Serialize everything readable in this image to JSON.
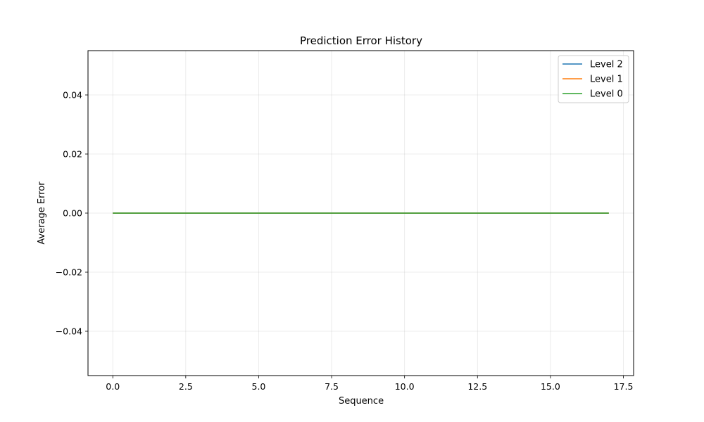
{
  "chart_data": {
    "type": "line",
    "title": "Prediction Error History",
    "xlabel": "Sequence",
    "ylabel": "Average Error",
    "xlim": [
      -0.85,
      17.85
    ],
    "ylim": [
      -0.055,
      0.055
    ],
    "x_ticks": [
      0.0,
      2.5,
      5.0,
      7.5,
      10.0,
      12.5,
      15.0,
      17.5
    ],
    "x_tick_labels": [
      "0.0",
      "2.5",
      "5.0",
      "7.5",
      "10.0",
      "12.5",
      "15.0",
      "17.5"
    ],
    "y_ticks": [
      -0.04,
      -0.02,
      0.0,
      0.02,
      0.04
    ],
    "y_tick_labels": [
      "−0.04",
      "−0.02",
      "0.00",
      "0.02",
      "0.04"
    ],
    "grid": true,
    "legend_position": "top-right",
    "x": [
      0,
      1,
      2,
      3,
      4,
      5,
      6,
      7,
      8,
      9,
      10,
      11,
      12,
      13,
      14,
      15,
      16,
      17
    ],
    "series": [
      {
        "name": "Level 2",
        "color": "#1f77b4",
        "values": [
          0,
          0,
          0,
          0,
          0,
          0,
          0,
          0,
          0,
          0,
          0,
          0,
          0,
          0,
          0,
          0,
          0,
          0
        ]
      },
      {
        "name": "Level 1",
        "color": "#ff7f0e",
        "values": [
          0,
          0,
          0,
          0,
          0,
          0,
          0,
          0,
          0,
          0,
          0,
          0,
          0,
          0,
          0,
          0,
          0,
          0
        ]
      },
      {
        "name": "Level 0",
        "color": "#2ca02c",
        "values": [
          0,
          0,
          0,
          0,
          0,
          0,
          0,
          0,
          0,
          0,
          0,
          0,
          0,
          0,
          0,
          0,
          0,
          0
        ]
      }
    ]
  }
}
